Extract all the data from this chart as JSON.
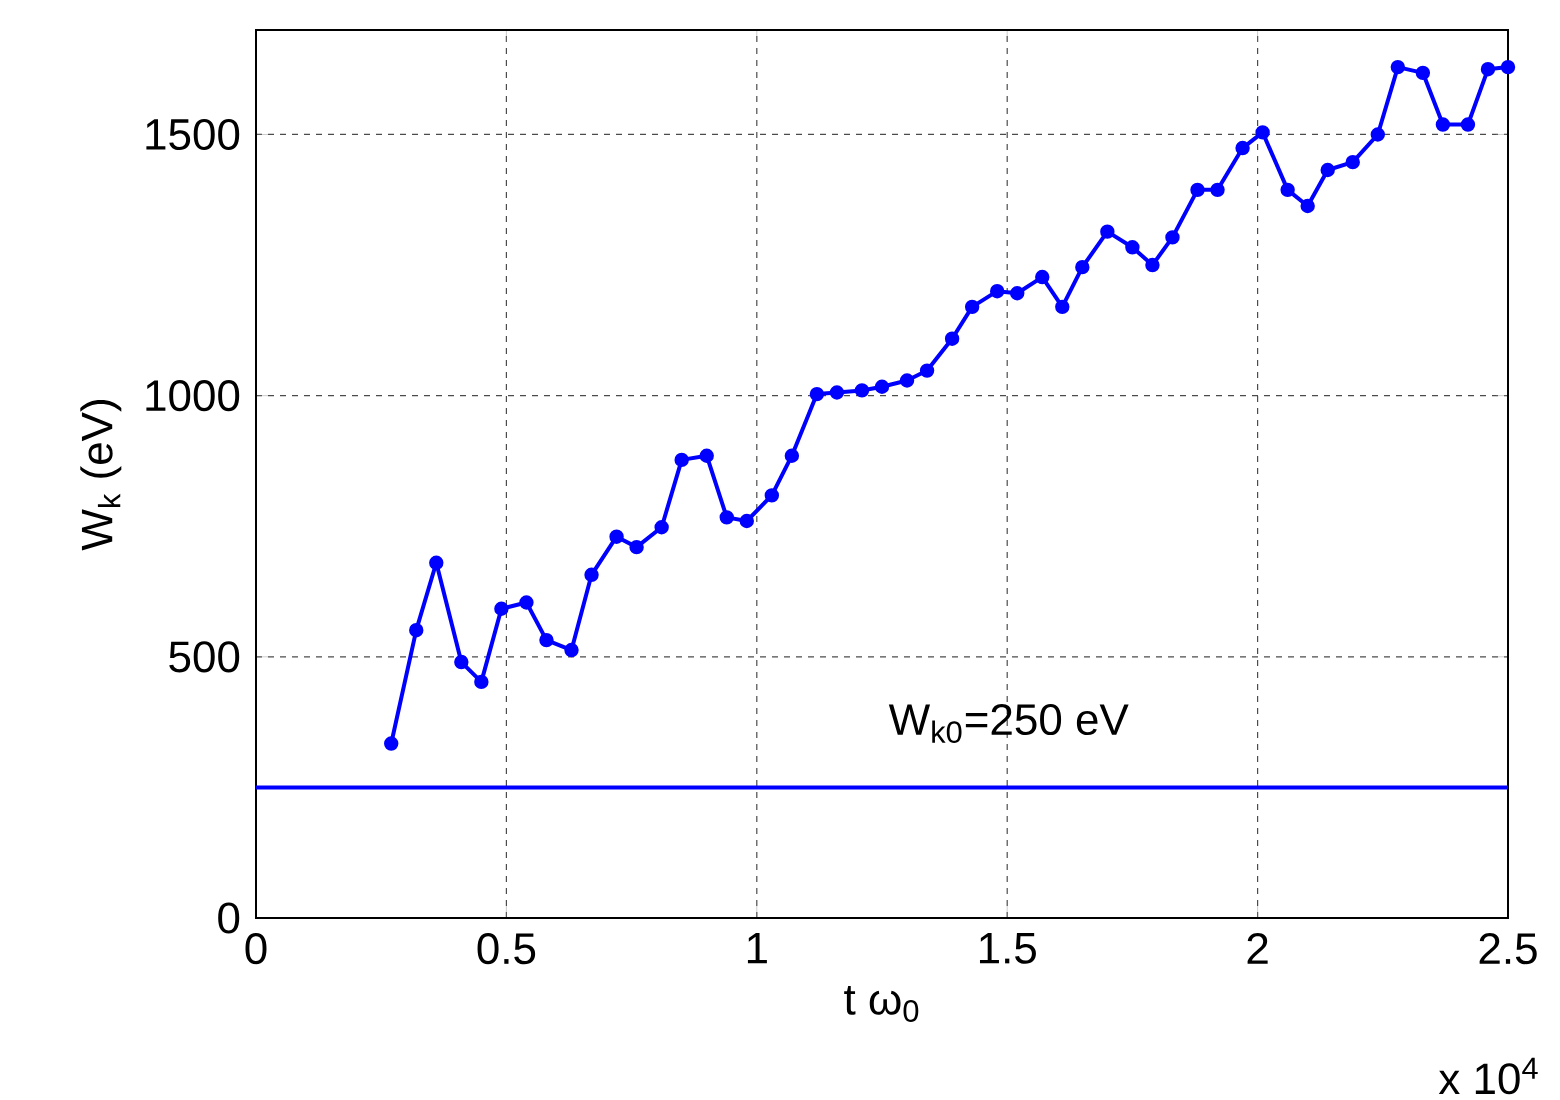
{
  "chart_data": {
    "type": "line",
    "xlabel": "t ω$_{0}$",
    "ylabel": "W$_{k}$  (eV)",
    "annotations": [
      "x 10$^{4}$"
    ],
    "xlim": [
      0,
      2.5
    ],
    "ylim": [
      0,
      1700
    ],
    "xticks": [
      0,
      0.5,
      1,
      1.5,
      2,
      2.5
    ],
    "yticks": [
      0,
      500,
      1000,
      1500
    ],
    "grid": true,
    "marker": "circle",
    "line_style": "solid",
    "ref_lines": [
      {
        "axis": "y",
        "value": 250,
        "label": "W$_{k0}$=250 eV",
        "color": "#0000ff"
      }
    ],
    "series": [
      {
        "color": "#0000ff",
        "x": [
          0.27,
          0.32,
          0.36,
          0.41,
          0.45,
          0.49,
          0.54,
          0.58,
          0.63,
          0.67,
          0.72,
          0.76,
          0.81,
          0.85,
          0.9,
          0.94,
          0.98,
          1.03,
          1.07,
          1.12,
          1.16,
          1.21,
          1.25,
          1.3,
          1.34,
          1.39,
          1.43,
          1.48,
          1.52,
          1.57,
          1.61,
          1.65,
          1.7,
          1.75,
          1.79,
          1.83,
          1.88,
          1.92,
          1.97,
          2.01,
          2.06,
          2.1,
          2.14,
          2.19,
          2.24,
          2.28,
          2.33,
          2.37,
          2.42,
          2.46,
          2.5
        ],
        "values": [
          334,
          551,
          680,
          490,
          452,
          592,
          604,
          532,
          513,
          657,
          730,
          710,
          748,
          877,
          885,
          767,
          760,
          809,
          885,
          1003,
          1006,
          1010,
          1017,
          1029,
          1048,
          1109,
          1170,
          1200,
          1196,
          1227,
          1170,
          1246,
          1314,
          1284,
          1250,
          1303,
          1394,
          1394,
          1474,
          1504,
          1394,
          1363,
          1432,
          1447,
          1500,
          1629,
          1618,
          1519,
          1519,
          1625,
          1629
        ]
      }
    ]
  }
}
